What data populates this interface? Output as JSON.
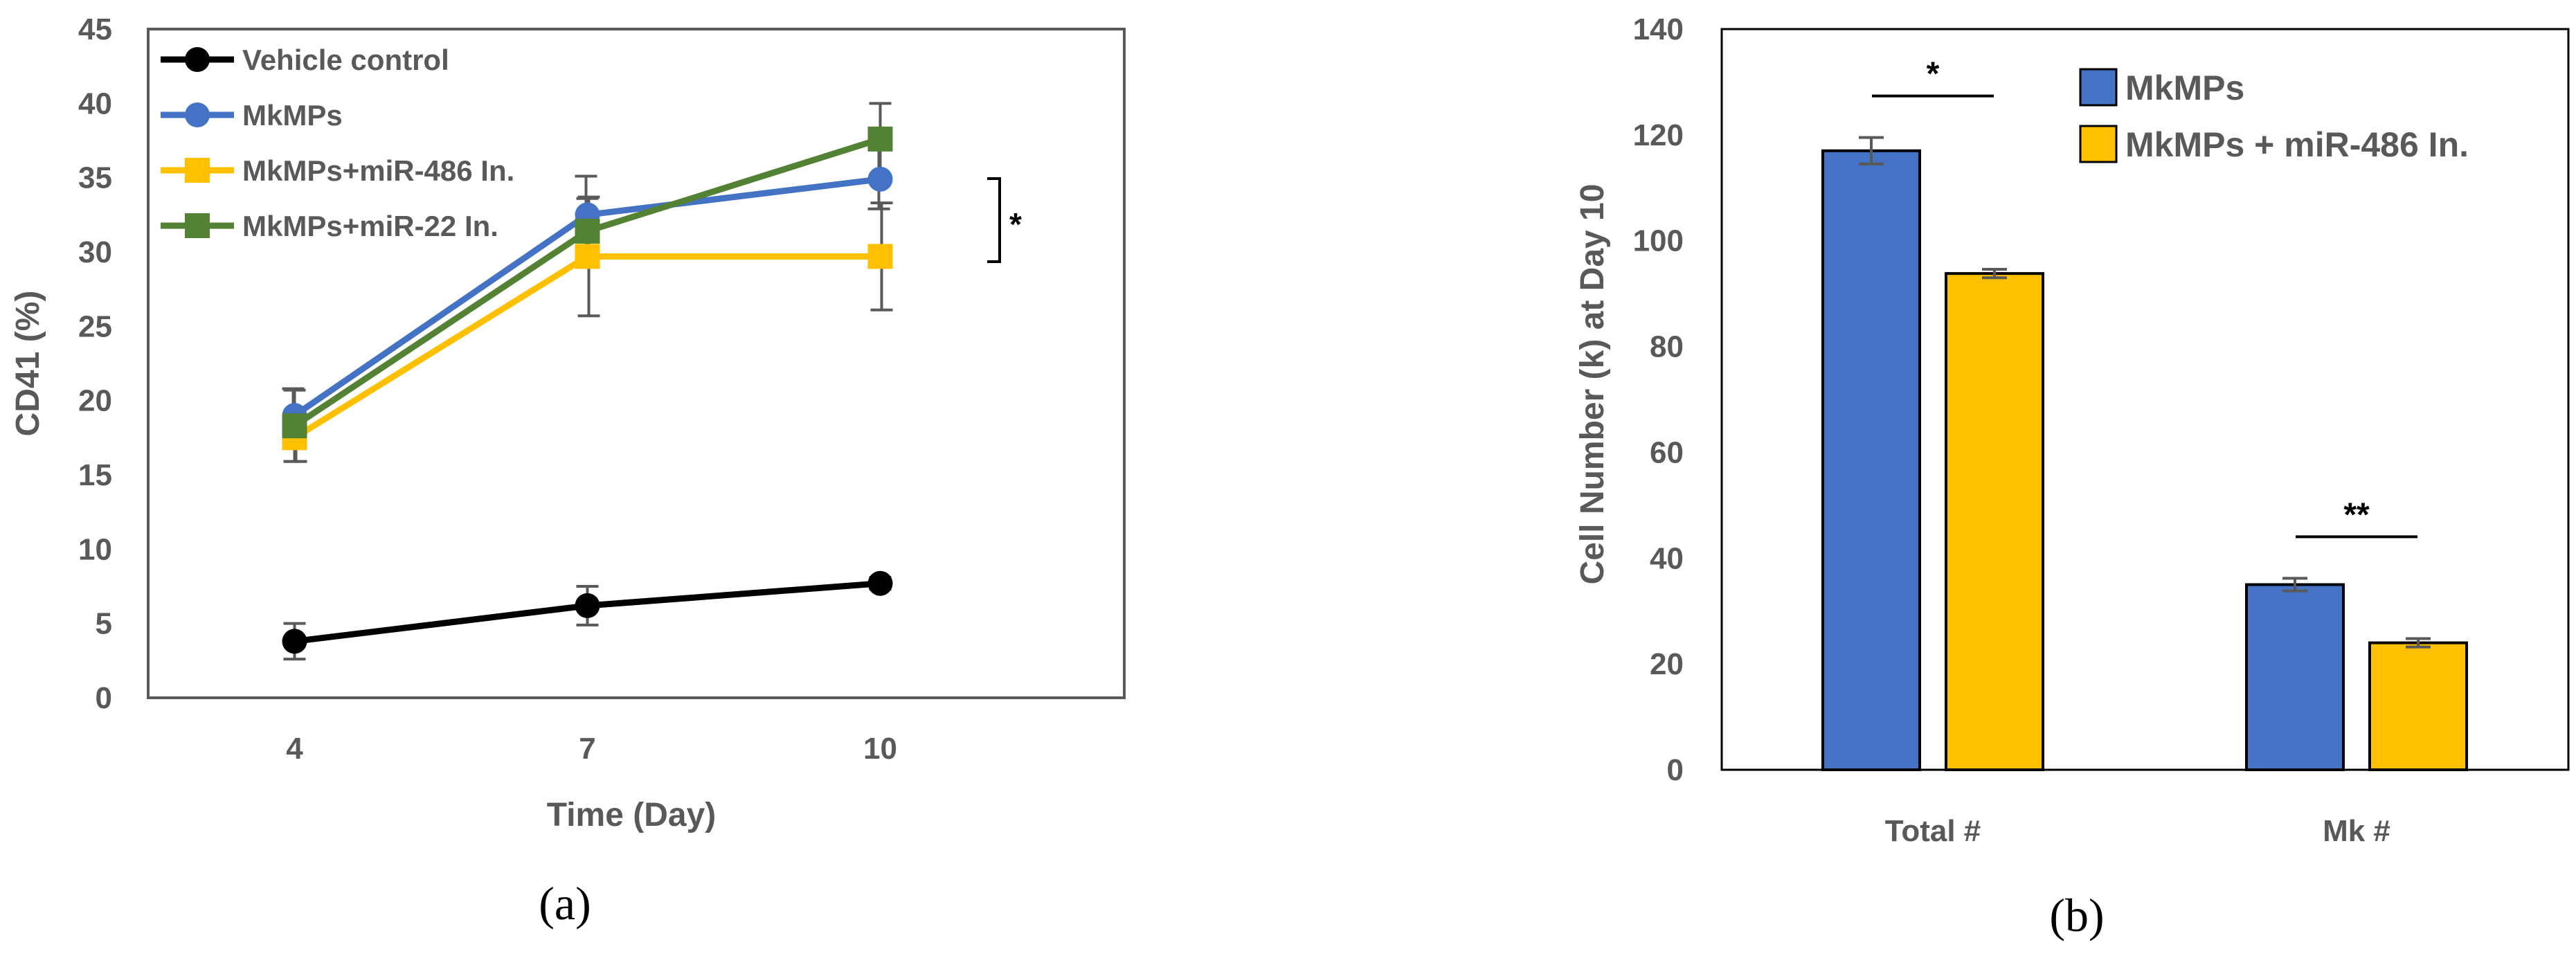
{
  "panels": {
    "a": "(a)",
    "b": "(b)"
  },
  "chart_data": [
    {
      "type": "line",
      "xlabel": "Time (Day)",
      "ylabel": "CD41 (%)",
      "x": [
        4,
        7,
        10
      ],
      "xlim": [
        2.5,
        12.5
      ],
      "ylim": [
        0,
        45
      ],
      "yticks": [
        0,
        5,
        10,
        15,
        20,
        25,
        30,
        35,
        40,
        45
      ],
      "yticklabels": [
        "0",
        "5",
        "10",
        "15",
        "20",
        "25",
        "30",
        "35",
        "40",
        "45"
      ],
      "xticklabels": [
        "4",
        "7",
        "10"
      ],
      "grid": false,
      "legend_position": "top-left",
      "series": [
        {
          "name": "Vehicle  control",
          "color": "#000000",
          "marker": "circle",
          "values": [
            3.8,
            6.2,
            7.7
          ],
          "err": [
            1.2,
            1.3,
            0.4
          ]
        },
        {
          "name": "MkMPs",
          "color": "#4472C4",
          "marker": "circle",
          "values": [
            19.0,
            32.5,
            34.9
          ],
          "err": [
            1.8,
            2.6,
            2.0
          ]
        },
        {
          "name": "MkMPs+miR-486 In.",
          "color": "#FFC000",
          "marker": "square",
          "values": [
            17.5,
            29.7,
            29.7
          ],
          "err": [
            1.6,
            4.0,
            3.6
          ]
        },
        {
          "name": "MkMPs+miR-22 In.",
          "color": "#548235",
          "marker": "square",
          "values": [
            18.3,
            31.4,
            37.6
          ],
          "err": [
            2.4,
            2.2,
            2.4
          ]
        }
      ],
      "annotations": [
        {
          "text": "*",
          "type": "bracket",
          "between": [
            "MkMPs",
            "MkMPs+miR-486 In."
          ],
          "at_x": 10
        }
      ]
    },
    {
      "type": "bar",
      "ylabel": "Cell Number (k) at Day 10",
      "categories": [
        "Total #",
        "Mk #"
      ],
      "ylim": [
        0,
        140
      ],
      "yticks": [
        0,
        20,
        40,
        60,
        80,
        100,
        120,
        140
      ],
      "yticklabels": [
        "0",
        "20",
        "40",
        "60",
        "80",
        "100",
        "120",
        "140"
      ],
      "grid": false,
      "legend_position": "top-right",
      "series": [
        {
          "name": "MkMPs",
          "color": "#4472C4",
          "values": [
            117.0,
            35.0
          ],
          "err": [
            2.5,
            1.2
          ]
        },
        {
          "name": "MkMPs + miR-486 In.",
          "color": "#FFC000",
          "values": [
            93.8,
            24.0
          ],
          "err": [
            0.8,
            0.8
          ]
        }
      ],
      "annotations": [
        {
          "text": "*",
          "category": "Total #"
        },
        {
          "text": "**",
          "category": "Mk #"
        }
      ]
    }
  ]
}
